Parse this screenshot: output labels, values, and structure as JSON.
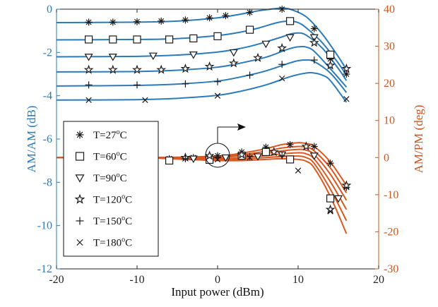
{
  "chart_data": {
    "type": "line",
    "xlabel": "Input power (dBm)",
    "ylabel_left": "AM/AM (dB)",
    "ylabel_right": "AM/PM (deg)",
    "xlim": [
      -20,
      20
    ],
    "ylim_left": [
      -12,
      0
    ],
    "ylim_right": [
      -30,
      40
    ],
    "xticks": [
      -20,
      -10,
      0,
      10,
      20
    ],
    "yticks_left": [
      -12,
      -10,
      -8,
      -6,
      -4,
      -2,
      0
    ],
    "yticks_right": [
      -30,
      -20,
      -10,
      0,
      10,
      20,
      30,
      40
    ],
    "grid": false,
    "legend_position": "lower-left",
    "colors": {
      "am": "#2b7bba",
      "pm": "#d9581f",
      "markers": "#1a1a1a",
      "left_axis": "#2b7bba",
      "right_axis": "#c9571e"
    },
    "annotation": "circle around AM/PM curves near 0 dBm with arrow pointing right",
    "series": [
      {
        "name": "T=27°C",
        "label_base": "T=27",
        "marker": "asterisk",
        "am_model": {
          "x": [
            -20,
            -10,
            -5,
            0,
            3,
            5,
            7,
            8,
            9,
            11,
            13,
            15,
            16
          ],
          "y": [
            -0.62,
            -0.6,
            -0.55,
            -0.4,
            -0.22,
            -0.08,
            0.02,
            0.05,
            0.0,
            -0.35,
            -1.15,
            -2.2,
            -2.8
          ]
        },
        "am_meas": {
          "x": [
            -16,
            -13,
            -10,
            -7,
            -4,
            -1,
            1,
            4,
            8,
            12,
            14,
            16
          ],
          "y": [
            -0.6,
            -0.6,
            -0.58,
            -0.55,
            -0.5,
            -0.4,
            -0.3,
            -0.15,
            0.0,
            -0.9,
            -2.3,
            -3.0
          ]
        },
        "pm_model": {
          "x": [
            -20,
            -10,
            -5,
            0,
            3,
            6,
            8,
            10,
            11,
            12,
            14,
            16
          ],
          "y": [
            0.0,
            0.0,
            0.1,
            0.4,
            1.2,
            2.4,
            3.5,
            4.0,
            3.8,
            3.0,
            -1.2,
            -7.5
          ]
        },
        "pm_meas": {
          "x": [
            -16,
            -13,
            -10,
            -6,
            -3,
            0,
            3,
            6,
            9,
            12,
            14,
            16
          ],
          "y": [
            0.0,
            -0.2,
            -0.3,
            -0.3,
            0.0,
            0.5,
            1.5,
            2.8,
            3.5,
            3.0,
            -1.5,
            -8.0
          ]
        }
      },
      {
        "name": "T=60°C",
        "label_base": "T=60",
        "marker": "square",
        "am_model": {
          "x": [
            -20,
            -10,
            -5,
            0,
            3,
            5,
            7,
            8,
            9,
            10,
            11,
            13,
            15,
            16
          ],
          "y": [
            -1.42,
            -1.4,
            -1.36,
            -1.22,
            -1.05,
            -0.88,
            -0.66,
            -0.58,
            -0.55,
            -0.62,
            -0.86,
            -1.55,
            -2.5,
            -3.05
          ]
        },
        "am_meas": {
          "x": [
            -16,
            -13,
            -10,
            -6,
            -3,
            0,
            4,
            9,
            14
          ],
          "y": [
            -1.4,
            -1.4,
            -1.4,
            -1.4,
            -1.35,
            -1.25,
            -0.95,
            -0.55,
            -2.1
          ]
        },
        "pm_model": {
          "x": [
            -20,
            -10,
            -5,
            0,
            3,
            6,
            8,
            10,
            11,
            12,
            14,
            16
          ],
          "y": [
            0.0,
            0.0,
            0.0,
            0.2,
            0.8,
            1.7,
            2.6,
            3.0,
            2.8,
            1.8,
            -2.8,
            -9.5
          ]
        },
        "pm_meas": {
          "x": [
            -16,
            -13,
            -10,
            -6,
            -1,
            3,
            6,
            9,
            14
          ],
          "y": [
            -0.5,
            -0.5,
            -0.5,
            -0.8,
            -0.6,
            0.5,
            1.5,
            -0.5,
            -11.0
          ]
        }
      },
      {
        "name": "T=90°C",
        "label_base": "T=90",
        "marker": "triangle-down",
        "am_model": {
          "x": [
            -20,
            -10,
            -5,
            0,
            3,
            5,
            8,
            9,
            10,
            11,
            13,
            15,
            16
          ],
          "y": [
            -2.2,
            -2.18,
            -2.12,
            -1.98,
            -1.8,
            -1.62,
            -1.28,
            -1.15,
            -1.1,
            -1.2,
            -1.8,
            -2.75,
            -3.3
          ]
        },
        "am_meas": {
          "x": [
            -16,
            -13,
            -8,
            -3,
            2,
            6,
            9,
            12
          ],
          "y": [
            -2.2,
            -2.2,
            -2.15,
            -2.1,
            -2.0,
            -1.6,
            -1.3,
            -1.3
          ]
        },
        "pm_model": {
          "x": [
            -20,
            -10,
            -5,
            0,
            3,
            6,
            8,
            10,
            11,
            12,
            14,
            16
          ],
          "y": [
            0.0,
            0.0,
            -0.1,
            0.0,
            0.5,
            1.1,
            1.8,
            2.2,
            2.0,
            0.8,
            -4.5,
            -11.5
          ]
        },
        "pm_meas": {
          "x": [
            -16,
            -12,
            -8,
            -3,
            1,
            5,
            8,
            12,
            15
          ],
          "y": [
            -0.3,
            -0.3,
            -0.3,
            -0.3,
            0.0,
            0.3,
            0.8,
            0.5,
            -11.0
          ]
        }
      },
      {
        "name": "T=120°C",
        "label_base": "T=120",
        "marker": "star",
        "am_model": {
          "x": [
            -20,
            -10,
            -5,
            0,
            3,
            6,
            8,
            9,
            10,
            11,
            12,
            14,
            16
          ],
          "y": [
            -2.9,
            -2.88,
            -2.82,
            -2.68,
            -2.48,
            -2.22,
            -1.95,
            -1.82,
            -1.74,
            -1.75,
            -1.95,
            -2.75,
            -3.6
          ]
        },
        "am_meas": {
          "x": [
            -16,
            -13,
            -10,
            -7,
            -4,
            -1,
            2,
            5,
            8,
            12,
            14,
            16
          ],
          "y": [
            -2.8,
            -2.8,
            -2.8,
            -2.8,
            -2.75,
            -2.65,
            -2.5,
            -2.25,
            -1.8,
            -1.55,
            -2.6,
            -2.75
          ]
        },
        "pm_model": {
          "x": [
            -20,
            -10,
            -5,
            0,
            3,
            6,
            8,
            10,
            11,
            12,
            14,
            16
          ],
          "y": [
            0.0,
            0.0,
            -0.2,
            -0.3,
            0.0,
            0.5,
            1.0,
            1.3,
            1.0,
            -0.4,
            -6.5,
            -14.0
          ]
        },
        "pm_meas": {
          "x": [
            -16,
            -12,
            -8,
            -4,
            -1,
            3,
            7,
            11,
            14,
            16
          ],
          "y": [
            -0.5,
            -0.5,
            -0.3,
            0.0,
            0.5,
            0.8,
            1.5,
            3.0,
            -14.0,
            -7.5
          ]
        }
      },
      {
        "name": "T=150°C",
        "label_base": "T=150",
        "marker": "plus",
        "am_model": {
          "x": [
            -20,
            -10,
            -5,
            0,
            3,
            6,
            9,
            10,
            11,
            12,
            14,
            16
          ],
          "y": [
            -3.55,
            -3.52,
            -3.46,
            -3.32,
            -3.12,
            -2.85,
            -2.48,
            -2.38,
            -2.35,
            -2.42,
            -2.95,
            -3.85
          ]
        },
        "am_meas": {
          "x": [
            -16,
            -10,
            -4,
            0,
            4,
            8,
            12
          ],
          "y": [
            -3.5,
            -3.5,
            -3.45,
            -3.35,
            -3.05,
            -2.55,
            -2.35
          ]
        },
        "pm_model": {
          "x": [
            -20,
            -10,
            -5,
            0,
            3,
            6,
            8,
            10,
            11,
            12,
            14,
            16
          ],
          "y": [
            0.0,
            0.0,
            -0.3,
            -0.6,
            -0.4,
            0.0,
            0.3,
            0.4,
            0.0,
            -1.6,
            -8.5,
            -17.0
          ]
        },
        "pm_meas": {
          "x": [
            -16,
            -10,
            -4,
            0,
            4,
            8
          ],
          "y": [
            -0.5,
            -0.5,
            -0.3,
            0.0,
            0.3,
            0.5
          ]
        }
      },
      {
        "name": "T=180°C",
        "label_base": "T=180",
        "marker": "x",
        "am_model": {
          "x": [
            -20,
            -10,
            -5,
            0,
            3,
            6,
            9,
            11,
            12,
            13,
            14,
            16
          ],
          "y": [
            -4.2,
            -4.18,
            -4.12,
            -3.98,
            -3.78,
            -3.5,
            -3.12,
            -2.95,
            -2.95,
            -3.05,
            -3.3,
            -4.3
          ]
        },
        "am_meas": {
          "x": [
            -16,
            -9,
            0,
            8,
            16
          ],
          "y": [
            -4.2,
            -4.2,
            -4.0,
            -3.2,
            -4.15
          ]
        },
        "pm_model": {
          "x": [
            -20,
            -10,
            -5,
            0,
            3,
            6,
            8,
            10,
            11,
            12,
            14,
            16
          ],
          "y": [
            0.0,
            0.0,
            -0.4,
            -0.8,
            -0.8,
            -0.5,
            -0.3,
            -0.5,
            -1.0,
            -2.8,
            -10.5,
            -20.5
          ]
        },
        "pm_meas": {
          "x": [
            -16,
            -8,
            0,
            4,
            10,
            14
          ],
          "y": [
            -1.0,
            -1.0,
            -0.5,
            0.0,
            -3.5,
            -14.5
          ]
        }
      }
    ]
  }
}
